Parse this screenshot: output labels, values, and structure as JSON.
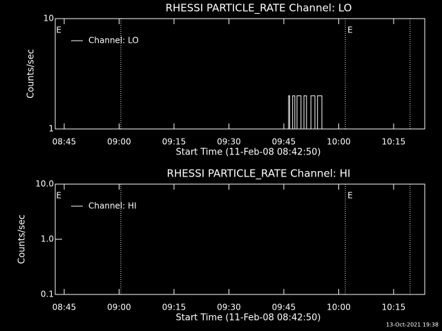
{
  "chart_data": [
    {
      "type": "line",
      "title": "RHESSI PARTICLE_RATE Channel: LO",
      "xlabel": "Start Time (11-Feb-08 08:42:50)",
      "ylabel": "Counts/sec",
      "log_y": true,
      "ylim": [
        1,
        10
      ],
      "yticks": [
        1,
        10
      ],
      "xlim": [
        522.55,
        623.5
      ],
      "xticks": [
        {
          "value": 525,
          "label": "08:45"
        },
        {
          "value": 540,
          "label": "09:00"
        },
        {
          "value": 555,
          "label": "09:15"
        },
        {
          "value": 570,
          "label": "09:30"
        },
        {
          "value": 585,
          "label": "09:45"
        },
        {
          "value": 600,
          "label": "10:00"
        },
        {
          "value": 615,
          "label": "10:15"
        }
      ],
      "vlines": [
        540.47,
        601.8,
        619.5
      ],
      "annotations": [
        {
          "text": "E",
          "x": 522.8
        },
        {
          "text": "E",
          "x": 602.4
        }
      ],
      "series": [
        {
          "name": "Channel: LO",
          "color": "#ffffff",
          "x": [
            586.0,
            586.3,
            586.3,
            586.6,
            586.6,
            587.4,
            587.4,
            588.0,
            588.0,
            588.6,
            588.6,
            589.7,
            589.7,
            590.5,
            590.5,
            591.2,
            591.2,
            592.4,
            592.4,
            593.5,
            593.5,
            594.2,
            594.2,
            595.4,
            595.4,
            596.1
          ],
          "values": [
            1,
            1,
            2,
            2,
            1,
            1,
            2,
            2,
            1,
            1,
            2,
            2,
            1,
            1,
            2,
            2,
            1,
            1,
            2,
            2,
            1,
            1,
            2,
            2,
            1,
            1
          ]
        }
      ]
    },
    {
      "type": "line",
      "title": "RHESSI PARTICLE_RATE Channel: HI",
      "xlabel": "Start Time (11-Feb-08 08:42:50)",
      "ylabel": "Counts/sec",
      "log_y": true,
      "ylim": [
        0.1,
        10
      ],
      "yticks": [
        0.1,
        {
          "value": 1,
          "label": "1.0"
        },
        {
          "value": 10,
          "label": "10.0"
        }
      ],
      "xlim": [
        522.55,
        623.5
      ],
      "xticks": [
        {
          "value": 525,
          "label": "08:45"
        },
        {
          "value": 540,
          "label": "09:00"
        },
        {
          "value": 555,
          "label": "09:15"
        },
        {
          "value": 570,
          "label": "09:30"
        },
        {
          "value": 585,
          "label": "09:45"
        },
        {
          "value": 600,
          "label": "10:00"
        },
        {
          "value": 615,
          "label": "10:15"
        }
      ],
      "vlines": [
        540.47,
        601.8,
        619.5
      ],
      "annotations": [
        {
          "text": "E",
          "x": 522.8
        },
        {
          "text": "E",
          "x": 602.4
        }
      ],
      "series": [
        {
          "name": "Channel: HI",
          "color": "#ffffff",
          "x": [],
          "values": []
        }
      ]
    }
  ],
  "footer": "13-Oct-2021 19:38"
}
